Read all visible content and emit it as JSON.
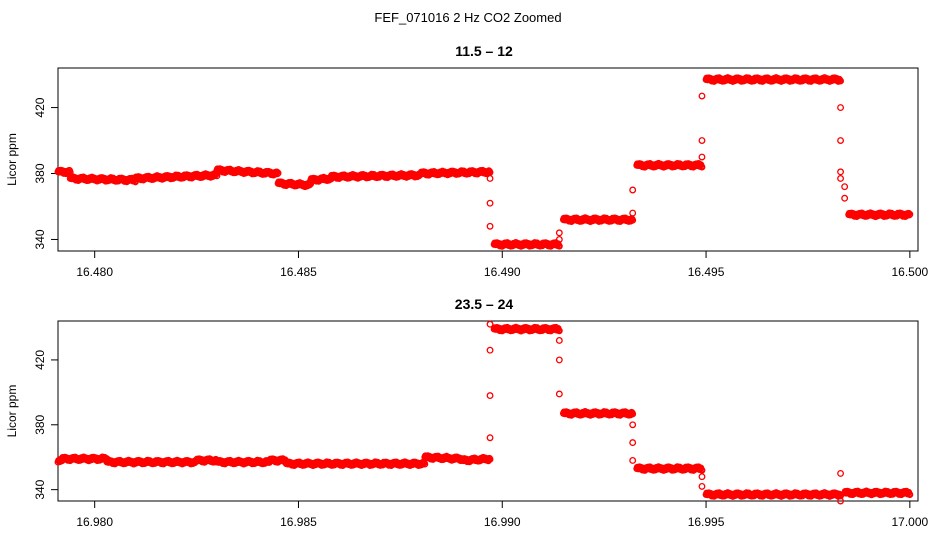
{
  "title": "FEF_071016  2 Hz CO2 Zoomed",
  "colors": {
    "points": "#ff0000",
    "axes": "#000000"
  },
  "chart_data": [
    {
      "type": "scatter",
      "title": "11.5 – 12",
      "xlabel": "",
      "ylabel": "Licor ppm",
      "xlim": [
        16.4791,
        16.5002
      ],
      "ylim": [
        333,
        444
      ],
      "xticks": [
        16.48,
        16.485,
        16.49,
        16.495,
        16.5
      ],
      "xtick_labels": [
        "16.480",
        "16.485",
        "16.490",
        "16.495",
        "16.500"
      ],
      "yticks": [
        340,
        380,
        420
      ],
      "ytick_labels": [
        "340",
        "380",
        "420"
      ],
      "grid": false,
      "marker": "open-circle",
      "segments": [
        {
          "x": [
            16.4791,
            16.4794
          ],
          "y": [
            381,
            381
          ]
        },
        {
          "x": [
            16.4794,
            16.481
          ],
          "y": [
            377,
            376
          ]
        },
        {
          "x": [
            16.481,
            16.483
          ],
          "y": [
            377,
            379
          ]
        },
        {
          "x": [
            16.483,
            16.4845
          ],
          "y": [
            382,
            380
          ]
        },
        {
          "x": [
            16.4845,
            16.4853
          ],
          "y": [
            374,
            373
          ]
        },
        {
          "x": [
            16.4853,
            16.4858
          ],
          "y": [
            376,
            377
          ]
        },
        {
          "x": [
            16.4858,
            16.488
          ],
          "y": [
            378,
            379
          ]
        },
        {
          "x": [
            16.488,
            16.4897
          ],
          "y": [
            380,
            381
          ]
        },
        {
          "x": [
            16.4898,
            16.4914
          ],
          "y": [
            337,
            337
          ]
        },
        {
          "x": [
            16.4915,
            16.4932
          ],
          "y": [
            352,
            352
          ]
        },
        {
          "x": [
            16.4933,
            16.4949
          ],
          "y": [
            385,
            385
          ]
        },
        {
          "x": [
            16.495,
            16.4983
          ],
          "y": [
            437,
            437
          ]
        },
        {
          "x": [
            16.4985,
            16.5
          ],
          "y": [
            355,
            355
          ]
        }
      ],
      "transitions": [
        {
          "x": 16.4897,
          "y": [
            377,
            362,
            348
          ]
        },
        {
          "x": 16.4914,
          "y": [
            340,
            344
          ]
        },
        {
          "x": 16.4932,
          "y": [
            356,
            370
          ]
        },
        {
          "x": 16.4949,
          "y": [
            390,
            400,
            427
          ]
        },
        {
          "x": 16.4983,
          "y": [
            420,
            400,
            381,
            377
          ]
        },
        {
          "x": 16.4984,
          "y": [
            372,
            365
          ]
        }
      ]
    },
    {
      "type": "scatter",
      "title": "23.5 – 24",
      "xlabel": "",
      "ylabel": "Licor ppm",
      "xlim": [
        16.9791,
        17.0002
      ],
      "ylim": [
        333,
        444
      ],
      "xticks": [
        16.98,
        16.985,
        16.99,
        16.995,
        17.0
      ],
      "xtick_labels": [
        "16.980",
        "16.985",
        "16.990",
        "16.995",
        "17.000"
      ],
      "yticks": [
        340,
        380,
        420
      ],
      "ytick_labels": [
        "340",
        "380",
        "420"
      ],
      "grid": false,
      "marker": "open-circle",
      "segments": [
        {
          "x": [
            16.9791,
            16.9792
          ],
          "y": [
            357,
            358
          ]
        },
        {
          "x": [
            16.9792,
            16.9803
          ],
          "y": [
            359,
            359
          ]
        },
        {
          "x": [
            16.9803,
            16.9825
          ],
          "y": [
            357,
            357
          ]
        },
        {
          "x": [
            16.9825,
            16.983
          ],
          "y": [
            358,
            358
          ]
        },
        {
          "x": [
            16.983,
            16.9843
          ],
          "y": [
            357,
            357
          ]
        },
        {
          "x": [
            16.9843,
            16.9847
          ],
          "y": [
            358,
            358
          ]
        },
        {
          "x": [
            16.9847,
            16.9881
          ],
          "y": [
            356,
            356
          ]
        },
        {
          "x": [
            16.9881,
            16.989
          ],
          "y": [
            360,
            359
          ]
        },
        {
          "x": [
            16.989,
            16.9897
          ],
          "y": [
            358,
            359
          ]
        },
        {
          "x": [
            16.9898,
            16.9914
          ],
          "y": [
            439,
            439
          ]
        },
        {
          "x": [
            16.9915,
            16.9932
          ],
          "y": [
            387,
            387
          ]
        },
        {
          "x": [
            16.9933,
            16.9949
          ],
          "y": [
            353,
            353
          ]
        },
        {
          "x": [
            16.995,
            16.9983
          ],
          "y": [
            337,
            337
          ]
        },
        {
          "x": [
            16.9984,
            17.0
          ],
          "y": [
            338,
            338
          ]
        }
      ],
      "transitions": [
        {
          "x": 16.9897,
          "y": [
            372,
            398,
            426,
            442
          ]
        },
        {
          "x": 16.9914,
          "y": [
            432,
            420,
            399
          ]
        },
        {
          "x": 16.9932,
          "y": [
            380,
            369,
            358
          ]
        },
        {
          "x": 16.9949,
          "y": [
            348,
            342
          ]
        },
        {
          "x": 16.9983,
          "y": [
            350,
            333
          ]
        }
      ]
    }
  ]
}
